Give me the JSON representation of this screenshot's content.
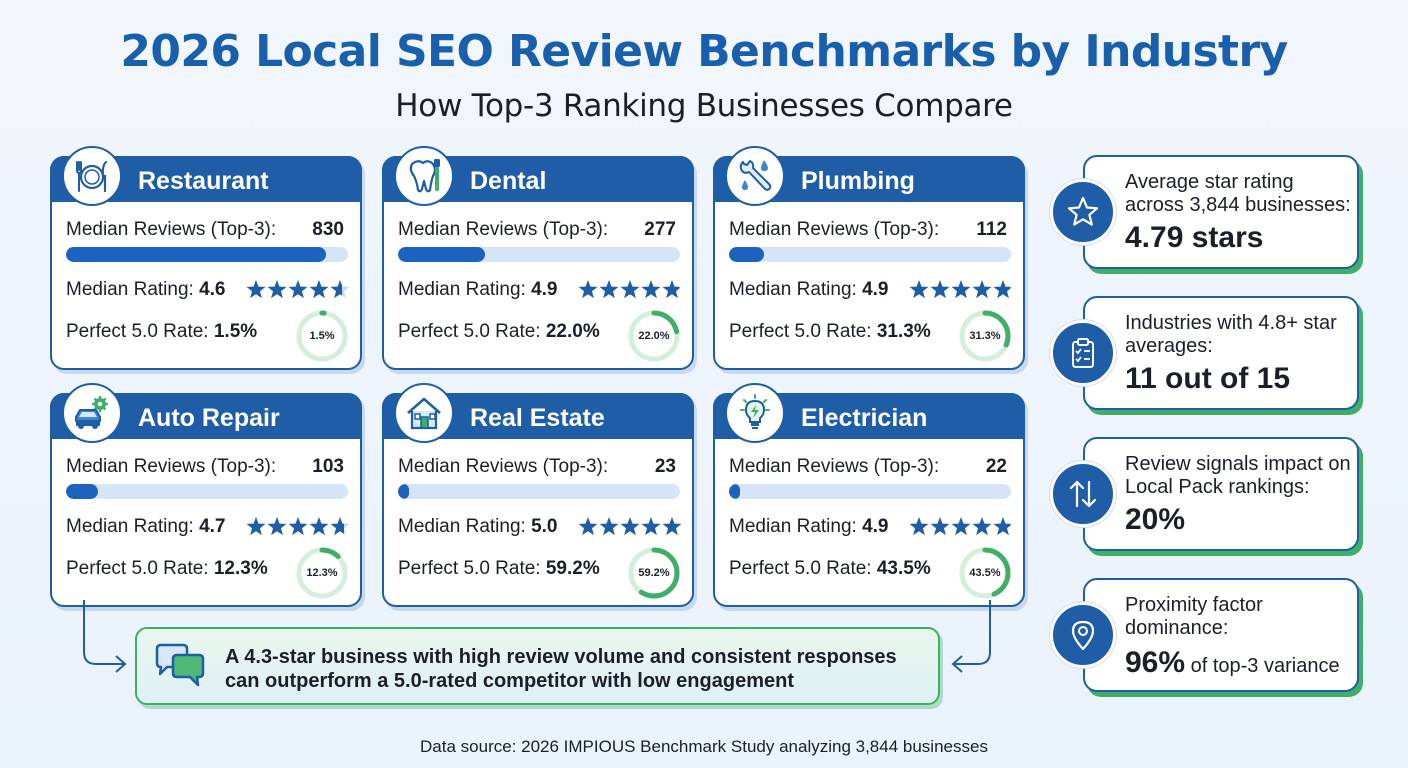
{
  "title": "2026 Local SEO Review Benchmarks by Industry",
  "subtitle": "How Top-3 Ranking Businesses Compare",
  "labels": {
    "median_reviews": "Median Reviews (Top-3):",
    "median_rating": "Median Rating:",
    "perfect_rate": "Perfect 5.0 Rate:"
  },
  "industries": [
    {
      "name": "Restaurant",
      "icon": "utensils-icon",
      "median_reviews": "830",
      "median_rating": "4.6",
      "perfect_rate": "1.5%"
    },
    {
      "name": "Dental",
      "icon": "tooth-icon",
      "median_reviews": "277",
      "median_rating": "4.9",
      "perfect_rate": "22.0%"
    },
    {
      "name": "Plumbing",
      "icon": "wrench-icon",
      "median_reviews": "112",
      "median_rating": "4.9",
      "perfect_rate": "31.3%"
    },
    {
      "name": "Auto Repair",
      "icon": "car-gear-icon",
      "median_reviews": "103",
      "median_rating": "4.7",
      "perfect_rate": "12.3%"
    },
    {
      "name": "Real Estate",
      "icon": "house-icon",
      "median_reviews": "23",
      "median_rating": "5.0",
      "perfect_rate": "59.2%"
    },
    {
      "name": "Electrician",
      "icon": "lightbulb-icon",
      "median_reviews": "22",
      "median_rating": "4.9",
      "perfect_rate": "43.5%"
    }
  ],
  "stats": [
    {
      "icon": "star-icon",
      "text": "Average star rating across 3,844 businesses:",
      "value": "4.79 stars",
      "suffix": ""
    },
    {
      "icon": "clipboard-checklist-icon",
      "text": "Industries with 4.8+ star averages:",
      "value": "11 out of 15",
      "suffix": ""
    },
    {
      "icon": "up-down-arrows-icon",
      "text": "Review signals impact on Local Pack rankings:",
      "value": "20%",
      "suffix": ""
    },
    {
      "icon": "map-pin-icon",
      "text": "Proximity factor dominance:",
      "value": "96%",
      "suffix": " of top-3 variance"
    }
  ],
  "insight": {
    "icon": "chat-bubbles-icon",
    "line1": "A 4.3-star business with high review volume and consistent responses",
    "line2": "can outperform a 5.0-rated competitor with low engagement"
  },
  "source": "Data source: 2026 IMPIOUS Benchmark Study analyzing 3,844 businesses",
  "colors": {
    "primary": "#1f5da6",
    "bar": "#1c63c0",
    "accent_green": "#3fae66",
    "star": "#1f5da6"
  }
}
